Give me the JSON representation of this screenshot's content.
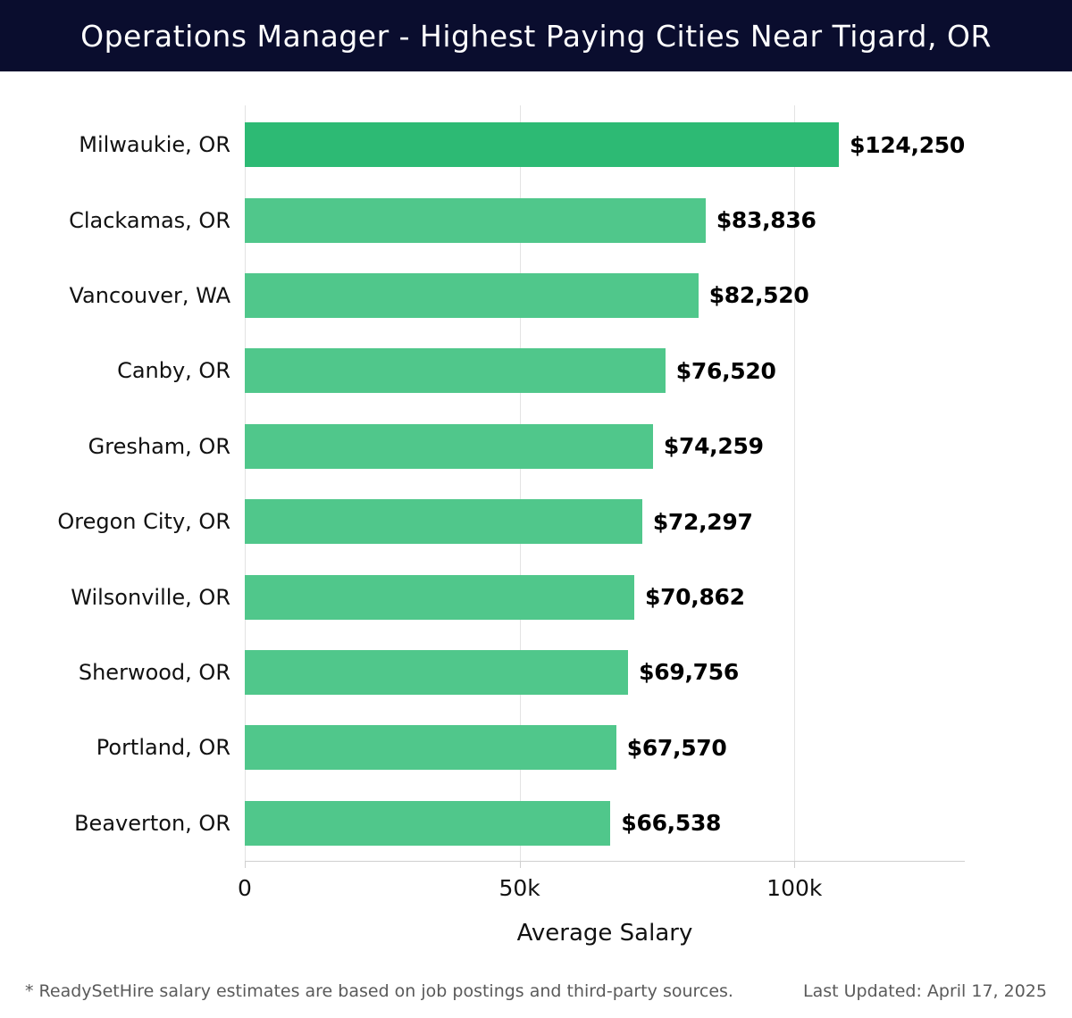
{
  "header": {
    "title": "Operations Manager - Highest Paying Cities Near Tigard, OR",
    "background_color": "#0a0d2e"
  },
  "chart_data": {
    "type": "bar",
    "orientation": "horizontal",
    "title": "Operations Manager - Highest Paying Cities Near Tigard, OR",
    "categories": [
      "Milwaukie, OR",
      "Clackamas, OR",
      "Vancouver, WA",
      "Canby, OR",
      "Gresham, OR",
      "Oregon City, OR",
      "Wilsonville, OR",
      "Sherwood, OR",
      "Portland, OR",
      "Beaverton, OR"
    ],
    "values": [
      124250,
      83836,
      82520,
      76520,
      74259,
      72297,
      70862,
      69756,
      67570,
      66538
    ],
    "value_labels": [
      "$124,250",
      "$83,836",
      "$82,520",
      "$76,520",
      "$74,259",
      "$72,297",
      "$70,862",
      "$69,756",
      "$67,570",
      "$66,538"
    ],
    "xlabel": "Average Salary",
    "ylabel": "",
    "xlim": [
      0,
      131000
    ],
    "xticks": [
      {
        "value": 0,
        "label": "0"
      },
      {
        "value": 50000,
        "label": "50k"
      },
      {
        "value": 100000,
        "label": "100k"
      }
    ],
    "grid": true,
    "legend": false,
    "highlight_index": 0,
    "highlight_color": "#2dba74",
    "bar_color": "#50c78b"
  },
  "footer": {
    "note": "* ReadySetHire salary estimates are based on job postings and third-party sources.",
    "updated": "Last Updated: April 17, 2025"
  }
}
